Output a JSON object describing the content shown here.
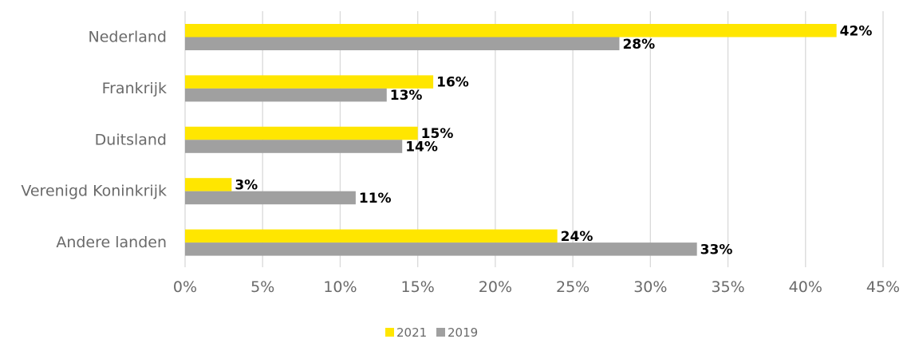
{
  "colors": {
    "series_2021": "#ffe600",
    "series_2019": "#a0a0a0",
    "grid": "#d9d9d9",
    "text": "#6a6a6a"
  },
  "chart_data": {
    "type": "bar",
    "orientation": "horizontal",
    "categories": [
      "Nederland",
      "Frankrijk",
      "Duitsland",
      "Verenigd Koninkrijk",
      "Andere landen"
    ],
    "series": [
      {
        "name": "2021",
        "values": [
          42,
          16,
          15,
          3,
          24
        ],
        "labels": [
          "42%",
          "16%",
          "15%",
          "3%",
          "24%"
        ]
      },
      {
        "name": "2019",
        "values": [
          28,
          13,
          14,
          11,
          33
        ],
        "labels": [
          "28%",
          "13%",
          "14%",
          "11%",
          "33%"
        ]
      }
    ],
    "xlim": [
      0,
      45
    ],
    "ticks": [
      0,
      5,
      10,
      15,
      20,
      25,
      30,
      35,
      40,
      45
    ],
    "tick_labels": [
      "0%",
      "5%",
      "10%",
      "15%",
      "20%",
      "25%",
      "30%",
      "35%",
      "40%",
      "45%"
    ],
    "grid": true,
    "legend_position": "bottom",
    "title": "",
    "xlabel": "",
    "ylabel": ""
  }
}
